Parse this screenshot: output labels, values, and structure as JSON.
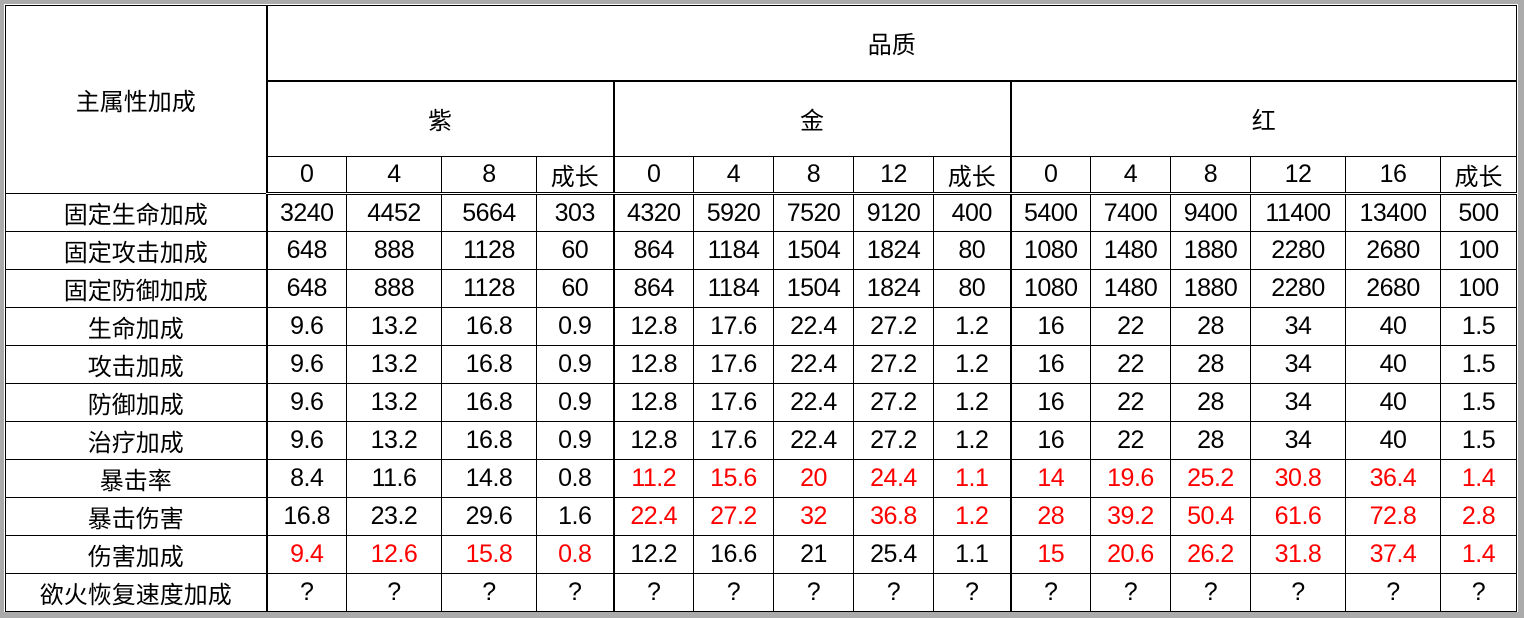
{
  "table": {
    "row_header_title": "主属性加成",
    "quality_title": "品质",
    "groups": [
      {
        "name": "紫",
        "levels": [
          "0",
          "4",
          "8",
          "成长"
        ]
      },
      {
        "name": "金",
        "levels": [
          "0",
          "4",
          "8",
          "12",
          "成长"
        ]
      },
      {
        "name": "红",
        "levels": [
          "0",
          "4",
          "8",
          "12",
          "16",
          "成长"
        ]
      }
    ],
    "highlight_color": "#ff0000",
    "rows": [
      {
        "label": "固定生命加成",
        "values": [
          "3240",
          "4452",
          "5664",
          "303",
          "4320",
          "5920",
          "7520",
          "9120",
          "400",
          "5400",
          "7400",
          "9400",
          "11400",
          "13400",
          "500"
        ],
        "red": []
      },
      {
        "label": "固定攻击加成",
        "values": [
          "648",
          "888",
          "1128",
          "60",
          "864",
          "1184",
          "1504",
          "1824",
          "80",
          "1080",
          "1480",
          "1880",
          "2280",
          "2680",
          "100"
        ],
        "red": []
      },
      {
        "label": "固定防御加成",
        "values": [
          "648",
          "888",
          "1128",
          "60",
          "864",
          "1184",
          "1504",
          "1824",
          "80",
          "1080",
          "1480",
          "1880",
          "2280",
          "2680",
          "100"
        ],
        "red": []
      },
      {
        "label": "生命加成",
        "values": [
          "9.6",
          "13.2",
          "16.8",
          "0.9",
          "12.8",
          "17.6",
          "22.4",
          "27.2",
          "1.2",
          "16",
          "22",
          "28",
          "34",
          "40",
          "1.5"
        ],
        "red": []
      },
      {
        "label": "攻击加成",
        "values": [
          "9.6",
          "13.2",
          "16.8",
          "0.9",
          "12.8",
          "17.6",
          "22.4",
          "27.2",
          "1.2",
          "16",
          "22",
          "28",
          "34",
          "40",
          "1.5"
        ],
        "red": []
      },
      {
        "label": "防御加成",
        "values": [
          "9.6",
          "13.2",
          "16.8",
          "0.9",
          "12.8",
          "17.6",
          "22.4",
          "27.2",
          "1.2",
          "16",
          "22",
          "28",
          "34",
          "40",
          "1.5"
        ],
        "red": []
      },
      {
        "label": "治疗加成",
        "values": [
          "9.6",
          "13.2",
          "16.8",
          "0.9",
          "12.8",
          "17.6",
          "22.4",
          "27.2",
          "1.2",
          "16",
          "22",
          "28",
          "34",
          "40",
          "1.5"
        ],
        "red": []
      },
      {
        "label": "暴击率",
        "values": [
          "8.4",
          "11.6",
          "14.8",
          "0.8",
          "11.2",
          "15.6",
          "20",
          "24.4",
          "1.1",
          "14",
          "19.6",
          "25.2",
          "30.8",
          "36.4",
          "1.4"
        ],
        "red": [
          4,
          5,
          6,
          7,
          8,
          9,
          10,
          11,
          12,
          13,
          14
        ]
      },
      {
        "label": "暴击伤害",
        "values": [
          "16.8",
          "23.2",
          "29.6",
          "1.6",
          "22.4",
          "27.2",
          "32",
          "36.8",
          "1.2",
          "28",
          "39.2",
          "50.4",
          "61.6",
          "72.8",
          "2.8"
        ],
        "red": [
          4,
          5,
          6,
          7,
          8,
          9,
          10,
          11,
          12,
          13,
          14
        ]
      },
      {
        "label": "伤害加成",
        "values": [
          "9.4",
          "12.6",
          "15.8",
          "0.8",
          "12.2",
          "16.6",
          "21",
          "25.4",
          "1.1",
          "15",
          "20.6",
          "26.2",
          "31.8",
          "37.4",
          "1.4"
        ],
        "red": [
          0,
          1,
          2,
          3,
          9,
          10,
          11,
          12,
          13,
          14
        ]
      },
      {
        "label": "欲火恢复速度加成",
        "values": [
          "?",
          "?",
          "?",
          "?",
          "?",
          "?",
          "?",
          "?",
          "?",
          "?",
          "?",
          "?",
          "?",
          "?",
          "?"
        ],
        "red": []
      }
    ]
  }
}
